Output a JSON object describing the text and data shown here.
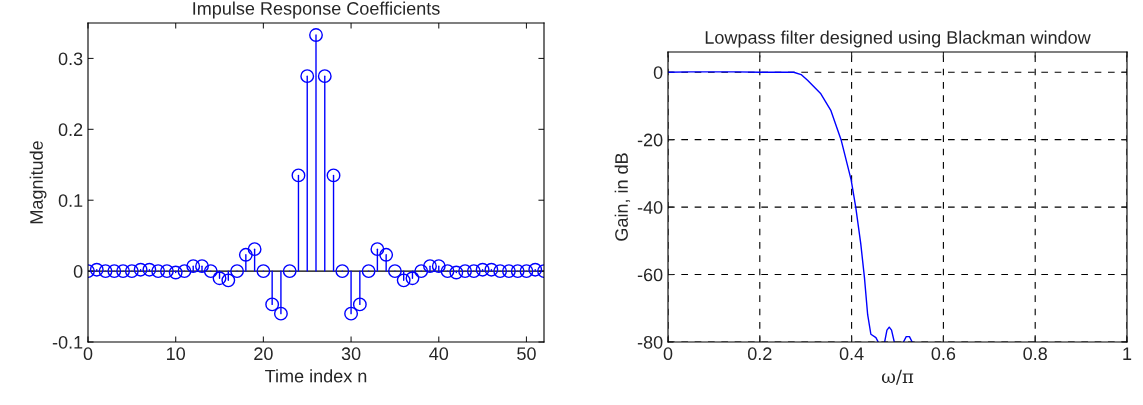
{
  "chart_data": [
    {
      "type": "lollipop",
      "title": "Impulse Response Coefficients",
      "xlabel": "Time index n",
      "ylabel": "Magnitude",
      "x": [
        0,
        1,
        2,
        3,
        4,
        5,
        6,
        7,
        8,
        9,
        10,
        11,
        12,
        13,
        14,
        15,
        16,
        17,
        18,
        19,
        20,
        21,
        22,
        23,
        24,
        25,
        26,
        27,
        28,
        29,
        30,
        31,
        32,
        33,
        34,
        35,
        36,
        37,
        38,
        39,
        40,
        41,
        42,
        43,
        44,
        45,
        46,
        47,
        48,
        49,
        50,
        51,
        52
      ],
      "series": [
        {
          "color": "#0000ff",
          "values": [
            0,
            0.002,
            0,
            0,
            0,
            0,
            0.002,
            0.002,
            0,
            0,
            -0.002,
            0,
            0.007,
            0.007,
            0,
            -0.01,
            -0.013,
            0,
            0.023,
            0.031,
            0,
            -0.047,
            -0.06,
            0,
            0.135,
            0.275,
            0.333,
            0.275,
            0.135,
            0,
            -0.06,
            -0.047,
            0,
            0.031,
            0.023,
            0,
            -0.013,
            -0.01,
            0,
            0.007,
            0.007,
            0,
            -0.002,
            0,
            0,
            0.002,
            0.002,
            0,
            0,
            0,
            0,
            0.002,
            0
          ]
        }
      ],
      "marker": "circle",
      "ref_lines": [
        {
          "axis": "y",
          "value": 0,
          "color": "#000000"
        }
      ],
      "xlim": [
        0,
        52
      ],
      "ylim": [
        -0.1,
        0.35
      ],
      "xticks": [
        0,
        10,
        20,
        30,
        40,
        50
      ],
      "yticks": [
        -0.1,
        0,
        0.1,
        0.2,
        0.3
      ],
      "grid": false
    },
    {
      "type": "line",
      "title": "Lowpass filter designed using Blackman window",
      "xlabel": "ω/π",
      "ylabel": "Gain, in dB",
      "series": [
        {
          "color": "#0000ff",
          "x": [
            0,
            0.05,
            0.1,
            0.15,
            0.2,
            0.25,
            0.274,
            0.29,
            0.304,
            0.333,
            0.355,
            0.377,
            0.399,
            0.409,
            0.42,
            0.428,
            0.435,
            0.442,
            0.453,
            0.458,
            0.46,
            0.472,
            0.477,
            0.482,
            0.487,
            0.493,
            0.495,
            0.513,
            0.519,
            0.526,
            0.532
          ],
          "values": [
            0,
            0.1,
            0.1,
            0.1,
            0,
            0,
            0,
            -0.7,
            -2.4,
            -6.4,
            -11.4,
            -20,
            -31.9,
            -40,
            -50.9,
            -60.9,
            -71.9,
            -77.7,
            -78.7,
            -80,
            null,
            -80,
            -76.5,
            -75.6,
            -76.5,
            -80,
            null,
            -80,
            -78.4,
            -78.4,
            -80
          ]
        }
      ],
      "xlim": [
        0,
        1
      ],
      "ylim": [
        -80,
        6
      ],
      "xticks": [
        0,
        0.2,
        0.4,
        0.6,
        0.8,
        1
      ],
      "yticks": [
        -80,
        -60,
        -40,
        -20,
        0
      ],
      "grid": true,
      "line_style": "solid"
    }
  ]
}
